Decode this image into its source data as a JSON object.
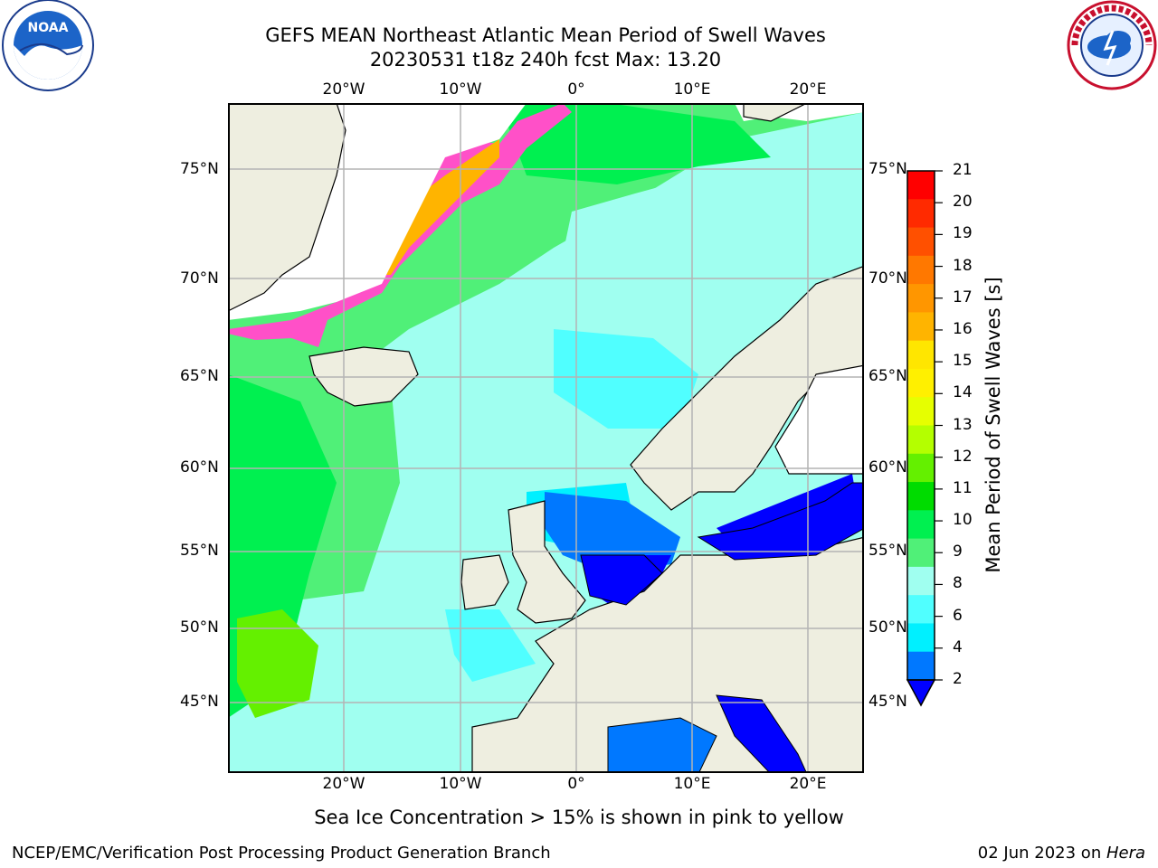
{
  "header": {
    "title": "GEFS MEAN Northeast Atlantic Mean Period of Swell Waves",
    "subtitle": "20230531 t18z 240h fcst   Max: 13.20",
    "logo_left": "NOAA",
    "logo_right": "NATIONAL WEATHER SERVICE"
  },
  "map": {
    "lon_labels": [
      "20°W",
      "10°W",
      "0°",
      "10°E",
      "20°E"
    ],
    "lat_labels": [
      "75°N",
      "70°N",
      "65°N",
      "60°N",
      "55°N",
      "50°N",
      "45°N"
    ],
    "grid": true
  },
  "colorbar": {
    "label": "Mean Period of Swell Waves [s]",
    "ticks": [
      "21",
      "20",
      "19",
      "18",
      "17",
      "16",
      "15",
      "14",
      "13",
      "12",
      "11",
      "10",
      "9",
      "8",
      "6",
      "4",
      "2"
    ],
    "colors": [
      "#ff0000",
      "#ff2a00",
      "#ff5000",
      "#ff7800",
      "#ff9600",
      "#ffb400",
      "#ffe600",
      "#fff000",
      "#e6ff00",
      "#b4ff00",
      "#64f000",
      "#00dc00",
      "#00f050",
      "#50f078",
      "#a0fff0",
      "#50ffff",
      "#00f0ff",
      "#0078ff"
    ],
    "extend_color": "#0000ff"
  },
  "notes": {
    "sea_ice": "Sea Ice Concentration > 15% is shown in pink to yellow"
  },
  "footer": {
    "left": "NCEP/EMC/Verification Post Processing Product Generation Branch",
    "right_date": "02 Jun 2023 on ",
    "right_host": "Hera"
  }
}
